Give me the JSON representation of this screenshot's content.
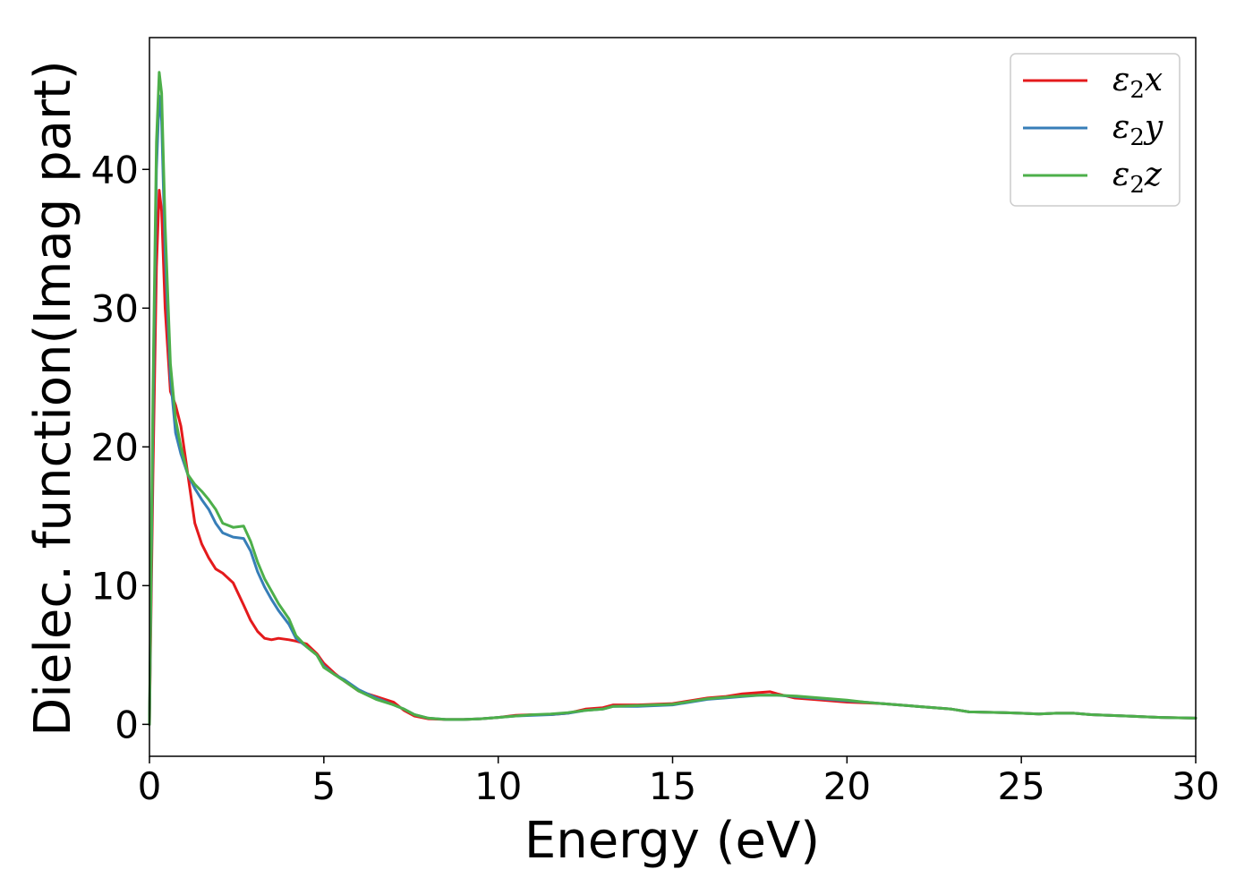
{
  "chart_data": {
    "type": "line",
    "xlabel": "Energy (eV)",
    "ylabel": "Dielec. function(Imag part)",
    "xlim": [
      0,
      30
    ],
    "ylim": [
      -2.3,
      49.5
    ],
    "xticks": [
      "0",
      "5",
      "10",
      "15",
      "20",
      "25",
      "30"
    ],
    "yticks": [
      "0",
      "10",
      "20",
      "30",
      "40"
    ],
    "legend_position": "upper right",
    "grid": false,
    "series": [
      {
        "name": "ε2x",
        "legend_base": "ε",
        "legend_sub": "2",
        "legend_tail": "x",
        "color": "#e41a1c",
        "x": [
          0,
          0.1,
          0.2,
          0.28,
          0.35,
          0.45,
          0.6,
          0.75,
          0.9,
          1.1,
          1.3,
          1.5,
          1.7,
          1.9,
          2.1,
          2.4,
          2.7,
          2.9,
          3.1,
          3.3,
          3.5,
          3.7,
          4.0,
          4.2,
          4.5,
          4.8,
          5.0,
          5.3,
          5.6,
          6.0,
          6.5,
          7.0,
          7.3,
          7.6,
          8.0,
          8.5,
          9.0,
          9.5,
          10.0,
          10.5,
          11.0,
          11.5,
          12.0,
          12.5,
          13.0,
          13.3,
          14.0,
          15.0,
          15.5,
          16.0,
          16.5,
          17.0,
          17.5,
          17.8,
          18.0,
          18.5,
          19.0,
          20.0,
          20.5,
          21.0,
          22.0,
          23.0,
          23.5,
          24.5,
          25.5,
          26.0,
          26.5,
          27.0,
          28.0,
          29.0,
          30.0
        ],
        "values": [
          0,
          18,
          33,
          38.5,
          37,
          30,
          24,
          23,
          21.5,
          18,
          14.5,
          13,
          12,
          11.2,
          10.9,
          10.2,
          8.6,
          7.5,
          6.7,
          6.2,
          6.1,
          6.2,
          6.1,
          6.0,
          5.8,
          5.1,
          4.4,
          3.7,
          3.1,
          2.4,
          2.0,
          1.6,
          1.0,
          0.6,
          0.4,
          0.35,
          0.35,
          0.4,
          0.5,
          0.65,
          0.7,
          0.7,
          0.8,
          1.1,
          1.2,
          1.4,
          1.4,
          1.5,
          1.7,
          1.9,
          2.0,
          2.2,
          2.3,
          2.35,
          2.2,
          1.9,
          1.8,
          1.6,
          1.55,
          1.5,
          1.3,
          1.1,
          0.9,
          0.85,
          0.75,
          0.8,
          0.8,
          0.7,
          0.6,
          0.5,
          0.45
        ]
      },
      {
        "name": "ε2y",
        "legend_base": "ε",
        "legend_sub": "2",
        "legend_tail": "y",
        "color": "#377eb8",
        "x": [
          0,
          0.1,
          0.2,
          0.28,
          0.35,
          0.45,
          0.6,
          0.75,
          0.9,
          1.1,
          1.3,
          1.5,
          1.7,
          1.9,
          2.1,
          2.4,
          2.7,
          2.9,
          3.1,
          3.3,
          3.5,
          3.7,
          4.0,
          4.2,
          4.5,
          4.8,
          5.0,
          5.3,
          5.6,
          6.0,
          6.5,
          7.0,
          7.3,
          7.6,
          8.0,
          8.5,
          9.0,
          9.5,
          10.0,
          10.5,
          11.0,
          11.5,
          12.0,
          12.5,
          13.0,
          13.3,
          14.0,
          15.0,
          15.5,
          16.0,
          16.5,
          17.0,
          17.5,
          17.8,
          18.0,
          18.5,
          19.0,
          20.0,
          20.5,
          21.0,
          22.0,
          23.0,
          23.5,
          24.5,
          25.5,
          26.0,
          26.5,
          27.0,
          28.0,
          29.0,
          30.0
        ],
        "values": [
          0,
          22,
          40,
          45.3,
          43.5,
          34,
          25,
          21,
          19.5,
          18,
          17,
          16.2,
          15.5,
          14.5,
          13.8,
          13.5,
          13.4,
          12.5,
          11.0,
          9.9,
          9.0,
          8.2,
          7.2,
          6.2,
          5.6,
          5.0,
          4.2,
          3.6,
          3.2,
          2.5,
          1.9,
          1.4,
          1.1,
          0.7,
          0.45,
          0.35,
          0.35,
          0.4,
          0.5,
          0.6,
          0.65,
          0.7,
          0.8,
          1.0,
          1.1,
          1.3,
          1.3,
          1.4,
          1.6,
          1.8,
          1.9,
          2.0,
          2.1,
          2.1,
          2.1,
          2.0,
          1.9,
          1.7,
          1.6,
          1.5,
          1.3,
          1.1,
          0.9,
          0.85,
          0.75,
          0.8,
          0.8,
          0.7,
          0.6,
          0.5,
          0.45
        ]
      },
      {
        "name": "ε2z",
        "legend_base": "ε",
        "legend_sub": "2",
        "legend_tail": "z",
        "color": "#4daf4a",
        "x": [
          0,
          0.1,
          0.2,
          0.28,
          0.35,
          0.45,
          0.6,
          0.75,
          0.9,
          1.1,
          1.3,
          1.5,
          1.7,
          1.9,
          2.1,
          2.4,
          2.7,
          2.9,
          3.1,
          3.3,
          3.5,
          3.7,
          4.0,
          4.2,
          4.5,
          4.8,
          5.0,
          5.3,
          5.6,
          6.0,
          6.5,
          7.0,
          7.3,
          7.6,
          8.0,
          8.5,
          9.0,
          9.5,
          10.0,
          10.5,
          11.0,
          11.5,
          12.0,
          12.5,
          13.0,
          13.3,
          14.0,
          15.0,
          15.5,
          16.0,
          16.5,
          17.0,
          17.5,
          17.8,
          18.0,
          18.5,
          19.0,
          20.0,
          20.5,
          21.0,
          22.0,
          23.0,
          23.5,
          24.5,
          25.5,
          26.0,
          26.5,
          27.0,
          28.0,
          29.0,
          30.0
        ],
        "values": [
          0,
          24,
          42,
          47.0,
          45.5,
          36,
          26,
          22,
          20,
          18,
          17.3,
          16.8,
          16.2,
          15.5,
          14.5,
          14.2,
          14.3,
          13.2,
          11.7,
          10.5,
          9.6,
          8.7,
          7.6,
          6.4,
          5.6,
          5.0,
          4.1,
          3.6,
          3.1,
          2.4,
          1.8,
          1.4,
          1.1,
          0.7,
          0.45,
          0.35,
          0.35,
          0.4,
          0.5,
          0.6,
          0.7,
          0.75,
          0.85,
          1.0,
          1.1,
          1.3,
          1.35,
          1.45,
          1.65,
          1.85,
          1.95,
          2.05,
          2.1,
          2.1,
          2.1,
          2.05,
          1.95,
          1.75,
          1.6,
          1.5,
          1.3,
          1.1,
          0.9,
          0.85,
          0.75,
          0.8,
          0.8,
          0.7,
          0.6,
          0.5,
          0.45
        ]
      }
    ]
  }
}
